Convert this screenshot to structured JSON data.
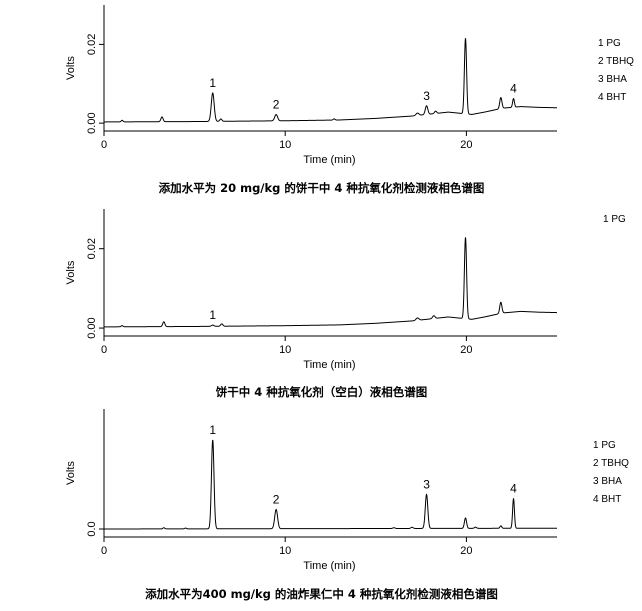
{
  "chart_data": [
    {
      "type": "line",
      "caption": "添加水平为 20 mg/kg 的饼干中 4 种抗氧化剂检测液相色谱图",
      "xlabel": "Time (min)",
      "ylabel": "Volts",
      "xlim": [
        0,
        25
      ],
      "ylim": [
        -0.002,
        0.03
      ],
      "xticks": [
        0,
        10,
        20
      ],
      "xtick_labels": [
        "0",
        "10",
        "20"
      ],
      "yticks": [
        0,
        0.02
      ],
      "ytick_labels": [
        "0.00",
        "0.02"
      ],
      "legend": [
        "1 PG",
        "2 TBHQ",
        "3 BHA",
        "4 BHT"
      ],
      "legend_position": "right",
      "baseline": [
        [
          0,
          0.0003
        ],
        [
          5,
          0.0004
        ],
        [
          10,
          0.0006
        ],
        [
          13,
          0.0008
        ],
        [
          15,
          0.0012
        ],
        [
          17,
          0.0018
        ],
        [
          19,
          0.0028
        ],
        [
          20.3,
          0.0022
        ],
        [
          21,
          0.0028
        ],
        [
          22,
          0.0038
        ],
        [
          23,
          0.0042
        ],
        [
          24,
          0.004
        ],
        [
          25,
          0.0039
        ]
      ],
      "peaks": [
        {
          "label": "",
          "t": 1.0,
          "h": 0.0004,
          "w": 0.05
        },
        {
          "label": "",
          "t": 3.2,
          "h": 0.0012,
          "w": 0.06
        },
        {
          "label": "1",
          "t": 6.0,
          "h": 0.0072,
          "w": 0.08
        },
        {
          "label": "",
          "t": 6.45,
          "h": 0.0006,
          "w": 0.06
        },
        {
          "label": "2",
          "t": 9.5,
          "h": 0.0016,
          "w": 0.08
        },
        {
          "label": "",
          "t": 12.7,
          "h": 0.0003,
          "w": 0.05
        },
        {
          "label": "",
          "t": 17.3,
          "h": 0.0006,
          "w": 0.08
        },
        {
          "label": "3",
          "t": 17.8,
          "h": 0.0022,
          "w": 0.07
        },
        {
          "label": "",
          "t": 18.3,
          "h": 0.0006,
          "w": 0.06
        },
        {
          "label": "",
          "t": 19.95,
          "h": 0.0192,
          "w": 0.06
        },
        {
          "label": "",
          "t": 21.9,
          "h": 0.0028,
          "w": 0.06
        },
        {
          "label": "4",
          "t": 22.6,
          "h": 0.0022,
          "w": 0.05
        }
      ]
    },
    {
      "type": "line",
      "caption": "饼干中 4 种抗氧化剂（空白）液相色谱图",
      "xlabel": "Time (min)",
      "ylabel": "Volts",
      "xlim": [
        0,
        25
      ],
      "ylim": [
        -0.002,
        0.03
      ],
      "xticks": [
        0,
        10,
        20
      ],
      "xtick_labels": [
        "0",
        "10",
        "20"
      ],
      "yticks": [
        0,
        0.02
      ],
      "ytick_labels": [
        "0.00",
        "0.02"
      ],
      "legend": [
        "1 PG"
      ],
      "legend_position": "right",
      "baseline": [
        [
          0,
          0.0003
        ],
        [
          5,
          0.0004
        ],
        [
          10,
          0.0006
        ],
        [
          13,
          0.0008
        ],
        [
          15,
          0.0012
        ],
        [
          17,
          0.0018
        ],
        [
          19,
          0.0028
        ],
        [
          20.3,
          0.0022
        ],
        [
          21,
          0.0028
        ],
        [
          22,
          0.0038
        ],
        [
          23,
          0.0042
        ],
        [
          24,
          0.004
        ],
        [
          25,
          0.0039
        ]
      ],
      "peaks": [
        {
          "label": "",
          "t": 1.0,
          "h": 0.0003,
          "w": 0.05
        },
        {
          "label": "",
          "t": 3.3,
          "h": 0.0012,
          "w": 0.06
        },
        {
          "label": "1",
          "t": 6.0,
          "h": 0.0003,
          "w": 0.07
        },
        {
          "label": "",
          "t": 6.5,
          "h": 0.0006,
          "w": 0.06
        },
        {
          "label": "",
          "t": 17.3,
          "h": 0.0006,
          "w": 0.08
        },
        {
          "label": "",
          "t": 18.2,
          "h": 0.0007,
          "w": 0.07
        },
        {
          "label": "",
          "t": 19.95,
          "h": 0.0205,
          "w": 0.06
        },
        {
          "label": "",
          "t": 21.9,
          "h": 0.0028,
          "w": 0.06
        }
      ]
    },
    {
      "type": "line",
      "caption": "添加水平为400 mg/kg 的油炸果仁中 4 种抗氧化剂检测液相色谱图",
      "xlabel": "Time (min)",
      "ylabel": "Volts",
      "xlim": [
        0,
        25
      ],
      "ylim": [
        -0.02,
        0.3
      ],
      "xticks": [
        0,
        10,
        20
      ],
      "xtick_labels": [
        "0",
        "10",
        "20"
      ],
      "yticks": [
        0
      ],
      "ytick_labels": [
        "0.0"
      ],
      "legend": [
        "1 PG",
        "2 TBHQ",
        "3 BHA",
        "4 BHT"
      ],
      "legend_position": "right",
      "baseline": [
        [
          0,
          0.0
        ],
        [
          25,
          0.002
        ]
      ],
      "peaks": [
        {
          "label": "",
          "t": 3.3,
          "h": 0.003,
          "w": 0.05
        },
        {
          "label": "",
          "t": 4.5,
          "h": 0.002,
          "w": 0.05
        },
        {
          "label": "1",
          "t": 6.0,
          "h": 0.222,
          "w": 0.07
        },
        {
          "label": "2",
          "t": 9.5,
          "h": 0.048,
          "w": 0.08
        },
        {
          "label": "",
          "t": 16.0,
          "h": 0.002,
          "w": 0.06
        },
        {
          "label": "",
          "t": 17.0,
          "h": 0.003,
          "w": 0.06
        },
        {
          "label": "3",
          "t": 17.8,
          "h": 0.085,
          "w": 0.07
        },
        {
          "label": "",
          "t": 19.95,
          "h": 0.026,
          "w": 0.06
        },
        {
          "label": "",
          "t": 20.5,
          "h": 0.003,
          "w": 0.06
        },
        {
          "label": "",
          "t": 21.9,
          "h": 0.006,
          "w": 0.05
        },
        {
          "label": "4",
          "t": 22.6,
          "h": 0.074,
          "w": 0.05
        }
      ]
    }
  ]
}
